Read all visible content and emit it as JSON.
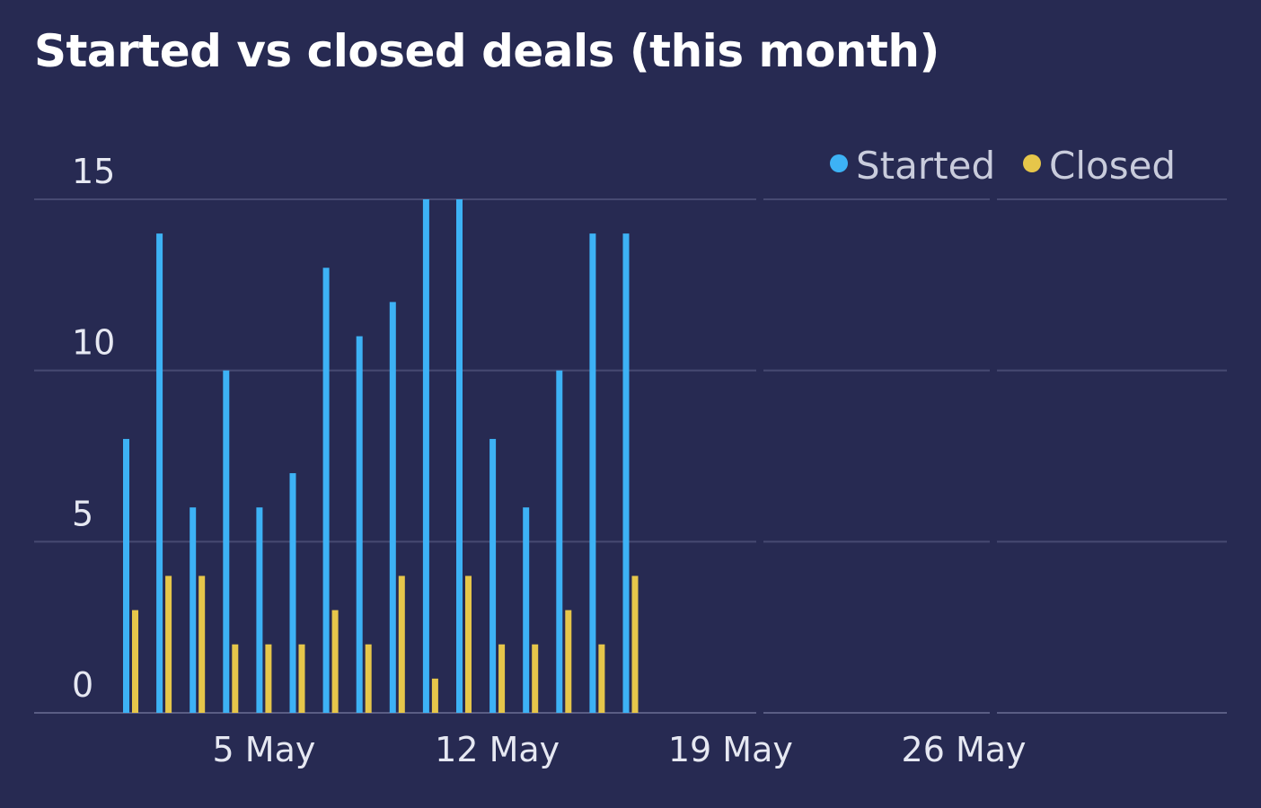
{
  "chart_data": {
    "type": "bar",
    "title": "Started vs closed deals (this month)",
    "xlabel": "",
    "ylabel": "",
    "x_dates": [
      "1 May",
      "2 May",
      "3 May",
      "4 May",
      "5 May",
      "6 May",
      "7 May",
      "8 May",
      "9 May",
      "10 May",
      "11 May",
      "12 May",
      "13 May",
      "14 May",
      "15 May",
      "16 May"
    ],
    "x_ticks": [
      "5 May",
      "12 May",
      "19 May",
      "26 May"
    ],
    "y_ticks": [
      "0",
      "5",
      "10",
      "15"
    ],
    "ylim": [
      0,
      15
    ],
    "xlim": [
      "1 May",
      "31 May"
    ],
    "grid": true,
    "legend_position": "top-right",
    "series": [
      {
        "name": "Started",
        "color": "#3db2f5",
        "values": [
          8,
          14,
          6,
          10,
          6,
          7,
          13,
          11,
          12,
          15,
          15,
          8,
          6,
          10,
          14,
          14
        ]
      },
      {
        "name": "Closed",
        "color": "#e6c64a",
        "values": [
          3,
          4,
          4,
          2,
          2,
          2,
          3,
          2,
          4,
          1,
          4,
          2,
          2,
          3,
          2,
          4
        ]
      }
    ]
  },
  "colors": {
    "background": "#272a52",
    "gridline": "#474a72",
    "axis": "#5a5d84"
  }
}
